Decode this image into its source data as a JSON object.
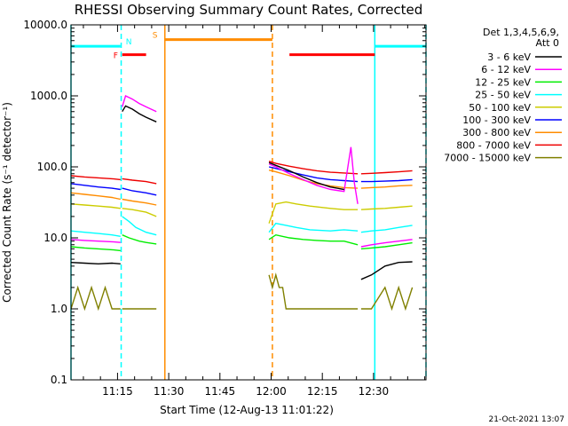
{
  "chart_data": {
    "type": "line",
    "title": "RHESSI Observing Summary Count Rates, Corrected",
    "xlabel": "Start Time (12-Aug-13 11:01:22)",
    "ylabel": "Corrected Count Rate (s⁻¹ detector⁻¹)",
    "x_units": "minutes since 11:01:22",
    "xlim": [
      0,
      104
    ],
    "xticks": [
      {
        "x": 13.63,
        "label": "11:15"
      },
      {
        "x": 28.63,
        "label": "11:30"
      },
      {
        "x": 43.63,
        "label": "11:45"
      },
      {
        "x": 58.63,
        "label": "12:00"
      },
      {
        "x": 73.63,
        "label": "12:15"
      },
      {
        "x": 88.63,
        "label": "12:30"
      }
    ],
    "y_scale": "log",
    "ylim": [
      0.1,
      10000
    ],
    "yticks": [
      "10000.0",
      "1000.0",
      "100.0",
      "10.0",
      "1.0",
      "0.1"
    ],
    "legend_header": [
      "Det 1,3,4,5,6,9,",
      "Att 0"
    ],
    "legend_position": "right",
    "grid": false,
    "series": [
      {
        "name": "3 - 6 keV",
        "color": "#000000",
        "segments": [
          {
            "x": [
              0,
              4,
              8,
              12,
              14.5
            ],
            "y": [
              4.5,
              4.4,
              4.3,
              4.4,
              4.3
            ]
          },
          {
            "x": [
              15,
              16,
              18,
              20,
              22,
              25
            ],
            "y": [
              600,
              720,
              650,
              560,
              500,
              430
            ]
          },
          {
            "x": [
              58,
              60,
              64,
              68,
              72,
              76,
              80
            ],
            "y": [
              115,
              105,
              88,
              72,
              60,
              52,
              48
            ]
          },
          {
            "x": [
              85,
              88,
              92,
              96,
              100
            ],
            "y": [
              2.6,
              3.0,
              4.0,
              4.5,
              4.6
            ]
          }
        ]
      },
      {
        "name": "6 - 12 keV",
        "color": "#ff00ff",
        "segments": [
          {
            "x": [
              0,
              4,
              8,
              12,
              14.5
            ],
            "y": [
              9.5,
              9.2,
              9.0,
              8.8,
              8.6
            ]
          },
          {
            "x": [
              15,
              16,
              18,
              20,
              22,
              25
            ],
            "y": [
              700,
              1000,
              900,
              780,
              700,
              600
            ]
          },
          {
            "x": [
              58,
              60,
              64,
              68,
              72,
              76,
              80,
              82,
              83,
              84
            ],
            "y": [
              110,
              100,
              80,
              66,
              55,
              48,
              45,
              190,
              60,
              30
            ]
          },
          {
            "x": [
              85,
              88,
              92,
              96,
              100
            ],
            "y": [
              7.5,
              8.0,
              8.5,
              9.0,
              9.5
            ]
          }
        ]
      },
      {
        "name": "12 - 25 keV",
        "color": "#00ee00",
        "segments": [
          {
            "x": [
              0,
              4,
              8,
              12,
              14.5
            ],
            "y": [
              7.5,
              7.2,
              7.0,
              6.8,
              6.6
            ]
          },
          {
            "x": [
              15,
              17,
              20,
              22,
              25
            ],
            "y": [
              11,
              10,
              9,
              8.6,
              8.2
            ]
          },
          {
            "x": [
              58,
              60,
              64,
              68,
              72,
              76,
              80,
              84
            ],
            "y": [
              9.5,
              11,
              10,
              9.5,
              9.2,
              9.0,
              9.0,
              8.0
            ]
          },
          {
            "x": [
              85,
              88,
              92,
              96,
              100
            ],
            "y": [
              7.0,
              7.2,
              7.5,
              8.0,
              8.5
            ]
          }
        ]
      },
      {
        "name": "25 - 50 keV",
        "color": "#00ffff",
        "segments": [
          {
            "x": [
              0,
              4,
              8,
              12,
              14.5
            ],
            "y": [
              12.5,
              12,
              11.5,
              11,
              10.5
            ]
          },
          {
            "x": [
              15,
              17,
              19,
              22,
              25
            ],
            "y": [
              20,
              17,
              14,
              12,
              11
            ]
          },
          {
            "x": [
              58,
              60,
              63,
              66,
              70,
              76,
              80,
              84
            ],
            "y": [
              12,
              16,
              15,
              14,
              13,
              12.5,
              13,
              12.5
            ]
          },
          {
            "x": [
              85,
              88,
              92,
              96,
              100
            ],
            "y": [
              12,
              12.5,
              13,
              14,
              15
            ]
          }
        ]
      },
      {
        "name": "50 - 100 keV",
        "color": "#cccc00",
        "segments": [
          {
            "x": [
              0,
              4,
              8,
              12,
              14.5
            ],
            "y": [
              30,
              29,
              28,
              27,
              26
            ]
          },
          {
            "x": [
              15,
              18,
              22,
              25
            ],
            "y": [
              26,
              25,
              23,
              20
            ]
          },
          {
            "x": [
              58,
              60,
              63,
              66,
              70,
              76,
              80,
              84
            ],
            "y": [
              16,
              30,
              32,
              30,
              28,
              26,
              25,
              25
            ]
          },
          {
            "x": [
              85,
              88,
              92,
              96,
              100
            ],
            "y": [
              25,
              25.5,
              26,
              27,
              28
            ]
          }
        ]
      },
      {
        "name": "100 - 300 keV",
        "color": "#0000ff",
        "segments": [
          {
            "x": [
              0,
              4,
              8,
              12,
              14.5
            ],
            "y": [
              58,
              55,
              52,
              50,
              48
            ]
          },
          {
            "x": [
              15,
              18,
              22,
              25
            ],
            "y": [
              50,
              46,
              43,
              40
            ]
          },
          {
            "x": [
              58,
              60,
              64,
              68,
              72,
              76,
              80,
              84
            ],
            "y": [
              100,
              95,
              85,
              77,
              70,
              66,
              64,
              62
            ]
          },
          {
            "x": [
              85,
              88,
              92,
              96,
              100
            ],
            "y": [
              62,
              62,
              63,
              64,
              66
            ]
          }
        ]
      },
      {
        "name": "300 - 800 keV",
        "color": "#ff8c00",
        "segments": [
          {
            "x": [
              0,
              4,
              8,
              12,
              14.5
            ],
            "y": [
              43,
              41,
              39,
              37,
              35
            ]
          },
          {
            "x": [
              15,
              18,
              22,
              25
            ],
            "y": [
              35,
              33,
              31,
              29
            ]
          },
          {
            "x": [
              58,
              60,
              64,
              68,
              72,
              76,
              80,
              84
            ],
            "y": [
              90,
              85,
              75,
              65,
              58,
              54,
              51,
              50
            ]
          },
          {
            "x": [
              85,
              88,
              92,
              96,
              100
            ],
            "y": [
              50,
              51,
              52,
              54,
              55
            ]
          }
        ]
      },
      {
        "name": "800 - 7000 keV",
        "color": "#ee0000",
        "segments": [
          {
            "x": [
              0,
              4,
              8,
              12,
              14.5
            ],
            "y": [
              75,
              72,
              70,
              68,
              66
            ]
          },
          {
            "x": [
              15,
              18,
              22,
              25
            ],
            "y": [
              68,
              65,
              62,
              58
            ]
          },
          {
            "x": [
              58,
              60,
              64,
              68,
              72,
              76,
              80,
              84
            ],
            "y": [
              120,
              112,
              102,
              94,
              88,
              84,
              82,
              80
            ]
          },
          {
            "x": [
              85,
              88,
              92,
              96,
              100
            ],
            "y": [
              80,
              81,
              83,
              85,
              88
            ]
          }
        ]
      },
      {
        "name": "7000 - 15000 keV",
        "color": "#808000",
        "segments": [
          {
            "x": [
              0,
              2,
              4,
              6,
              8,
              10,
              12,
              14.5
            ],
            "y": [
              1.0,
              2.0,
              1.0,
              2.0,
              1.0,
              2.0,
              1.0,
              1.0
            ]
          },
          {
            "x": [
              15,
              25
            ],
            "y": [
              1.0,
              1.0
            ]
          },
          {
            "x": [
              58,
              59,
              60,
              61,
              62,
              63,
              64,
              68,
              72,
              76,
              80,
              84
            ],
            "y": [
              3.0,
              2.0,
              3.0,
              2.0,
              2.0,
              1.0,
              1.0,
              1.0,
              1.0,
              1.0,
              1.0,
              1.0
            ]
          },
          {
            "x": [
              85,
              88,
              92,
              94,
              96,
              98,
              100
            ],
            "y": [
              1.0,
              1.0,
              2.0,
              1.0,
              2.0,
              1.0,
              2.0
            ]
          }
        ]
      }
    ],
    "flags": [
      {
        "label": "N",
        "color": "#00ffff",
        "y": 5000,
        "segments": [
          [
            0,
            14.5
          ],
          [
            89,
            104
          ]
        ]
      },
      {
        "label": "F",
        "color": "#ff0000",
        "y": 3800,
        "segments": [
          [
            15,
            22
          ],
          [
            64,
            89
          ]
        ]
      },
      {
        "label": "S",
        "color": "#ff8c00",
        "y": 6200,
        "segments": [
          [
            27.5,
            59
          ]
        ]
      }
    ],
    "markers": [
      {
        "x": 0,
        "color": "#00ffff",
        "style": "solid"
      },
      {
        "x": 14.7,
        "color": "#00ffff",
        "style": "dashed"
      },
      {
        "x": 27.5,
        "color": "#ff8c00",
        "style": "solid"
      },
      {
        "x": 59,
        "color": "#ff8c00",
        "style": "dashed"
      },
      {
        "x": 89,
        "color": "#00ffff",
        "style": "solid"
      },
      {
        "x": 104,
        "color": "#00ffff",
        "style": "dashed"
      }
    ]
  },
  "footer": {
    "timestamp": "21-Oct-2021 13:07"
  }
}
